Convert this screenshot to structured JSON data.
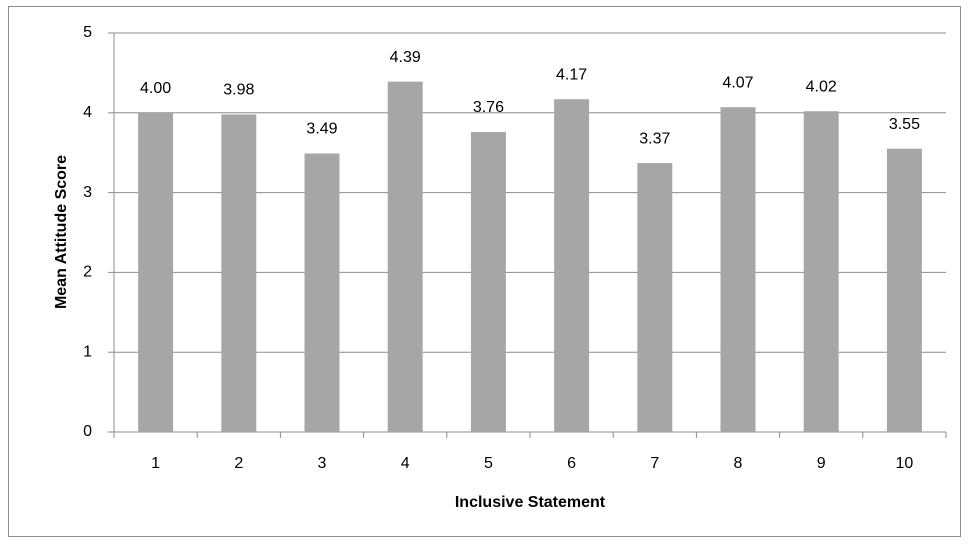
{
  "chart_data": {
    "type": "bar",
    "categories": [
      "1",
      "2",
      "3",
      "4",
      "5",
      "6",
      "7",
      "8",
      "9",
      "10"
    ],
    "values": [
      4.0,
      3.98,
      3.49,
      4.39,
      3.76,
      4.17,
      3.37,
      4.07,
      4.02,
      3.55
    ],
    "value_labels": [
      "4.00",
      "3.98",
      "3.49",
      "4.39",
      "3.76",
      "4.17",
      "3.37",
      "4.07",
      "4.02",
      "3.55"
    ],
    "color": "#a6a6a6",
    "x_label": "Inclusive Statement",
    "y_label": "Mean Attitude Score",
    "ylim": [
      0,
      5
    ],
    "yticks": [
      0,
      1,
      2,
      3,
      4,
      5
    ],
    "grid": true
  }
}
